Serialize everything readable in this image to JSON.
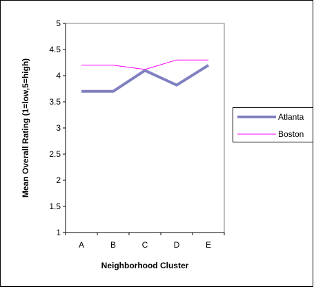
{
  "chart_data": {
    "type": "line",
    "title": "",
    "xlabel": "Neighborhood Cluster",
    "ylabel": "Mean Overall Rating (1=low,5=high)",
    "categories": [
      "A",
      "B",
      "C",
      "D",
      "E"
    ],
    "ylim": [
      1,
      5
    ],
    "yticks": [
      "1",
      "1.5",
      "2",
      "2.5",
      "3",
      "3.5",
      "4",
      "4.5",
      "5"
    ],
    "grid": false,
    "legend_position": "right",
    "series": [
      {
        "name": "Atlanta",
        "values": [
          3.7,
          3.7,
          4.1,
          3.82,
          4.2
        ],
        "color": "#8080c0"
      },
      {
        "name": "Boston",
        "values": [
          4.2,
          4.2,
          4.12,
          4.3,
          4.3
        ],
        "color": "#ff00ff"
      }
    ]
  }
}
